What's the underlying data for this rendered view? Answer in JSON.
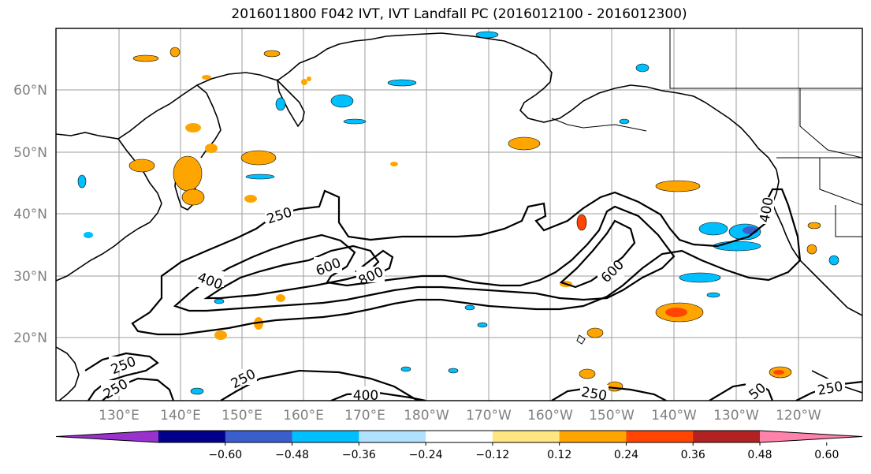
{
  "title": "2016011800 F042 IVT, IVT Landfall PC (2016012100 - 2016012300)",
  "lat_labels": [
    "60°N",
    "50°N",
    "40°N",
    "30°N",
    "20°N"
  ],
  "lon_labels": [
    "130°E",
    "140°E",
    "150°E",
    "160°E",
    "170°E",
    "180°W",
    "170°W",
    "160°W",
    "150°W",
    "140°W",
    "130°W",
    "120°W"
  ],
  "contour_labels": [
    "250",
    "400",
    "600",
    "800",
    "600",
    "400",
    "250",
    "250",
    "250",
    "400",
    "250",
    "50",
    "250"
  ],
  "colorbar": {
    "ticks": [
      "−0.60",
      "−0.48",
      "−0.36",
      "−0.24",
      "−0.12",
      "0.12",
      "0.24",
      "0.36",
      "0.48",
      "0.60"
    ],
    "colors": [
      "#9932cc",
      "#00008b",
      "#3a5fcd",
      "#00bfff",
      "#b0e2ff",
      "#ffffff",
      "#ffe680",
      "#ffa500",
      "#ff4500",
      "#b22222",
      "#ff82ab"
    ]
  }
}
